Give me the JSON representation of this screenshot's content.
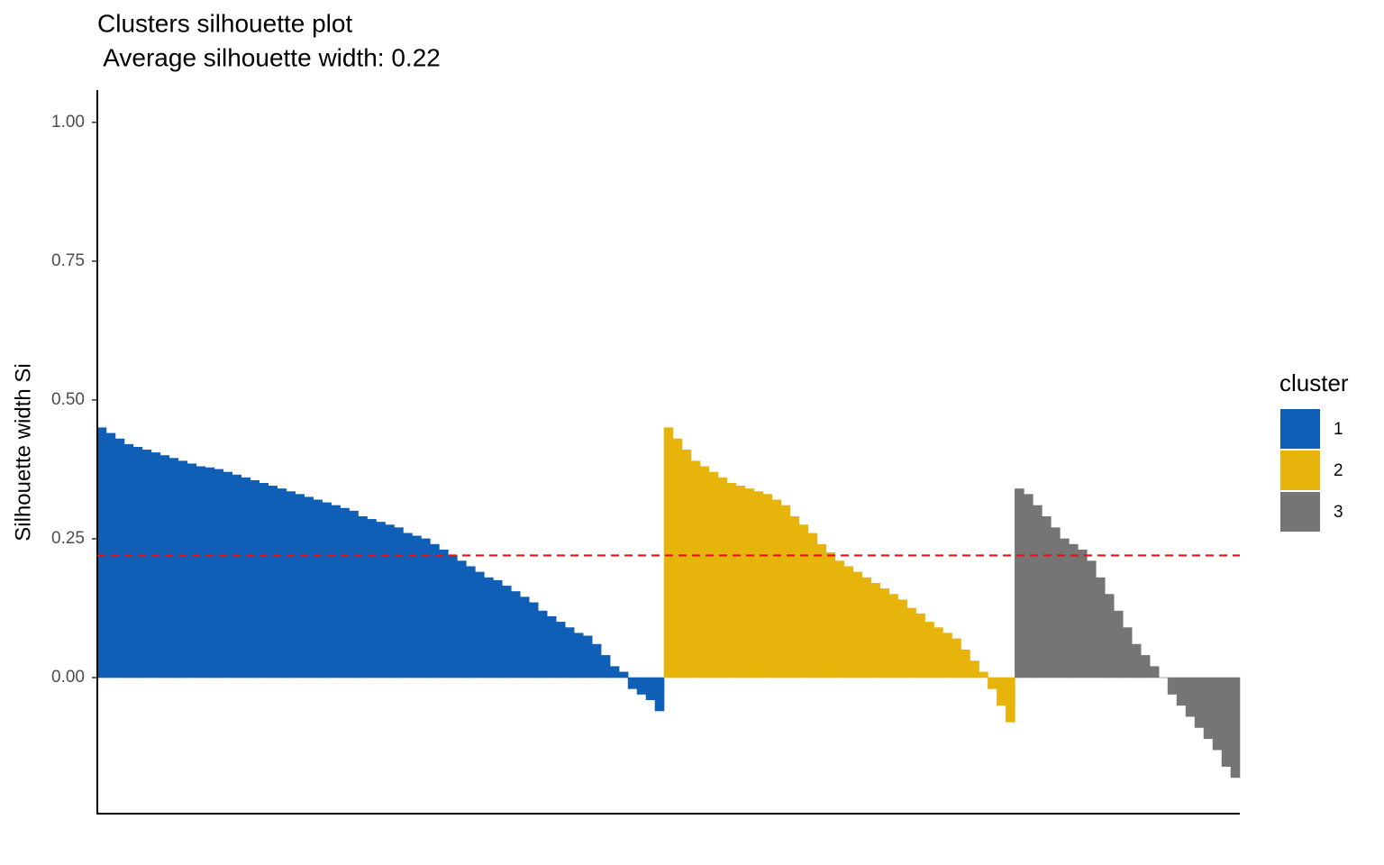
{
  "chart_data": {
    "type": "bar",
    "title": "Clusters silhouette plot",
    "subtitle": " Average silhouette width: 0.22",
    "y_label": "Silhouette width Si",
    "legend_title": "cluster",
    "legend_position": "right",
    "ylim": [
      -0.245,
      1.058
    ],
    "yticks": [
      {
        "value": 0,
        "label": "0.00"
      },
      {
        "value": 0.25,
        "label": "0.25"
      },
      {
        "value": 0.5,
        "label": "0.50"
      },
      {
        "value": 0.75,
        "label": "0.75"
      },
      {
        "value": 1,
        "label": "1.00"
      }
    ],
    "average_line": {
      "value": 0.22,
      "color": "#e8101a",
      "dashed": true
    },
    "series": [
      {
        "name": "1",
        "color": "#0e5fb5",
        "values": [
          0.45,
          0.44,
          0.43,
          0.42,
          0.415,
          0.41,
          0.405,
          0.4,
          0.395,
          0.39,
          0.385,
          0.38,
          0.378,
          0.375,
          0.37,
          0.365,
          0.36,
          0.355,
          0.35,
          0.345,
          0.34,
          0.335,
          0.33,
          0.325,
          0.32,
          0.315,
          0.31,
          0.305,
          0.3,
          0.29,
          0.285,
          0.28,
          0.275,
          0.27,
          0.26,
          0.255,
          0.25,
          0.24,
          0.23,
          0.22,
          0.21,
          0.2,
          0.19,
          0.18,
          0.175,
          0.165,
          0.155,
          0.145,
          0.135,
          0.12,
          0.11,
          0.1,
          0.09,
          0.08,
          0.075,
          0.06,
          0.04,
          0.02,
          0.01,
          -0.02,
          -0.03,
          -0.04,
          -0.06
        ]
      },
      {
        "name": "2",
        "color": "#e7b40b",
        "values": [
          0.45,
          0.43,
          0.41,
          0.39,
          0.38,
          0.37,
          0.36,
          0.35,
          0.345,
          0.34,
          0.335,
          0.33,
          0.32,
          0.31,
          0.29,
          0.275,
          0.26,
          0.24,
          0.225,
          0.21,
          0.2,
          0.19,
          0.18,
          0.17,
          0.16,
          0.15,
          0.14,
          0.125,
          0.115,
          0.1,
          0.09,
          0.08,
          0.07,
          0.05,
          0.03,
          0.01,
          -0.02,
          -0.05,
          -0.08
        ]
      },
      {
        "name": "3",
        "color": "#757575",
        "values": [
          0.34,
          0.33,
          0.31,
          0.29,
          0.27,
          0.25,
          0.24,
          0.23,
          0.21,
          0.18,
          0.15,
          0.12,
          0.09,
          0.06,
          0.04,
          0.02,
          0.0,
          -0.03,
          -0.05,
          -0.07,
          -0.09,
          -0.11,
          -0.13,
          -0.16,
          -0.18
        ]
      }
    ]
  }
}
